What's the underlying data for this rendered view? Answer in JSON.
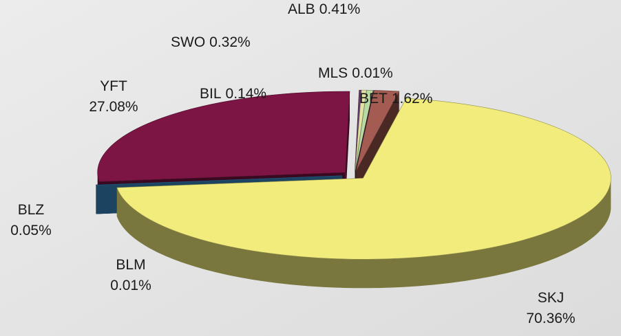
{
  "chart_data": {
    "type": "pie3d",
    "categories": [
      "SKJ",
      "BLM",
      "BLZ",
      "YFT",
      "BIL",
      "SWO",
      "ALB",
      "MLS",
      "BET"
    ],
    "values": [
      70.36,
      0.01,
      0.05,
      27.08,
      0.14,
      0.32,
      0.41,
      0.01,
      1.62
    ],
    "value_labels": [
      "70.36%",
      "0.01%",
      "0.05%",
      "27.08%",
      "0.14%",
      "0.32%",
      "0.41%",
      "0.01%",
      "1.62%"
    ],
    "colors": [
      "#f1ec7c",
      "#3f95d6",
      "#1c3c7c",
      "#7c1444",
      "#6a3a6c",
      "#e2e2a4",
      "#b9dba2",
      "#3c1c44",
      "#a45c52"
    ]
  }
}
